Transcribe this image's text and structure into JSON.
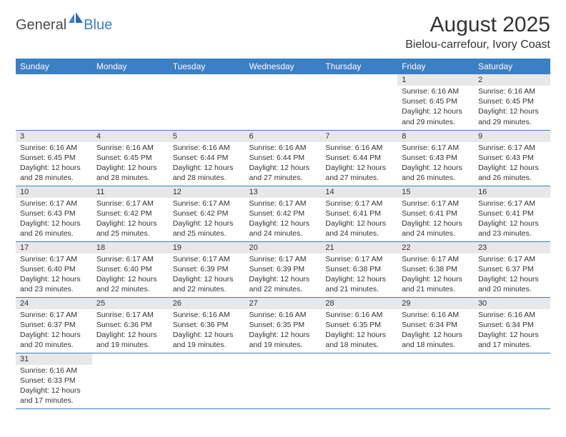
{
  "logo": {
    "text1": "General",
    "text2": "Blue"
  },
  "title": "August 2025",
  "location": "Bielou-carrefour, Ivory Coast",
  "colors": {
    "header_bg": "#3b7fc4",
    "header_text": "#ffffff",
    "daynum_bg": "#e8e8e8",
    "cell_border": "#3b7fc4",
    "page_bg": "#ffffff",
    "text": "#333333"
  },
  "typography": {
    "title_fontsize": 30,
    "location_fontsize": 16,
    "dayheader_fontsize": 12,
    "daynum_fontsize": 11,
    "cell_fontsize": 10.5,
    "logo_fontsize": 20
  },
  "day_headers": [
    "Sunday",
    "Monday",
    "Tuesday",
    "Wednesday",
    "Thursday",
    "Friday",
    "Saturday"
  ],
  "weeks": [
    [
      {
        "day": "",
        "lines": []
      },
      {
        "day": "",
        "lines": []
      },
      {
        "day": "",
        "lines": []
      },
      {
        "day": "",
        "lines": []
      },
      {
        "day": "",
        "lines": []
      },
      {
        "day": "1",
        "lines": [
          "Sunrise: 6:16 AM",
          "Sunset: 6:45 PM",
          "Daylight: 12 hours",
          "and 29 minutes."
        ]
      },
      {
        "day": "2",
        "lines": [
          "Sunrise: 6:16 AM",
          "Sunset: 6:45 PM",
          "Daylight: 12 hours",
          "and 29 minutes."
        ]
      }
    ],
    [
      {
        "day": "3",
        "lines": [
          "Sunrise: 6:16 AM",
          "Sunset: 6:45 PM",
          "Daylight: 12 hours",
          "and 28 minutes."
        ]
      },
      {
        "day": "4",
        "lines": [
          "Sunrise: 6:16 AM",
          "Sunset: 6:45 PM",
          "Daylight: 12 hours",
          "and 28 minutes."
        ]
      },
      {
        "day": "5",
        "lines": [
          "Sunrise: 6:16 AM",
          "Sunset: 6:44 PM",
          "Daylight: 12 hours",
          "and 28 minutes."
        ]
      },
      {
        "day": "6",
        "lines": [
          "Sunrise: 6:16 AM",
          "Sunset: 6:44 PM",
          "Daylight: 12 hours",
          "and 27 minutes."
        ]
      },
      {
        "day": "7",
        "lines": [
          "Sunrise: 6:16 AM",
          "Sunset: 6:44 PM",
          "Daylight: 12 hours",
          "and 27 minutes."
        ]
      },
      {
        "day": "8",
        "lines": [
          "Sunrise: 6:17 AM",
          "Sunset: 6:43 PM",
          "Daylight: 12 hours",
          "and 26 minutes."
        ]
      },
      {
        "day": "9",
        "lines": [
          "Sunrise: 6:17 AM",
          "Sunset: 6:43 PM",
          "Daylight: 12 hours",
          "and 26 minutes."
        ]
      }
    ],
    [
      {
        "day": "10",
        "lines": [
          "Sunrise: 6:17 AM",
          "Sunset: 6:43 PM",
          "Daylight: 12 hours",
          "and 26 minutes."
        ]
      },
      {
        "day": "11",
        "lines": [
          "Sunrise: 6:17 AM",
          "Sunset: 6:42 PM",
          "Daylight: 12 hours",
          "and 25 minutes."
        ]
      },
      {
        "day": "12",
        "lines": [
          "Sunrise: 6:17 AM",
          "Sunset: 6:42 PM",
          "Daylight: 12 hours",
          "and 25 minutes."
        ]
      },
      {
        "day": "13",
        "lines": [
          "Sunrise: 6:17 AM",
          "Sunset: 6:42 PM",
          "Daylight: 12 hours",
          "and 24 minutes."
        ]
      },
      {
        "day": "14",
        "lines": [
          "Sunrise: 6:17 AM",
          "Sunset: 6:41 PM",
          "Daylight: 12 hours",
          "and 24 minutes."
        ]
      },
      {
        "day": "15",
        "lines": [
          "Sunrise: 6:17 AM",
          "Sunset: 6:41 PM",
          "Daylight: 12 hours",
          "and 24 minutes."
        ]
      },
      {
        "day": "16",
        "lines": [
          "Sunrise: 6:17 AM",
          "Sunset: 6:41 PM",
          "Daylight: 12 hours",
          "and 23 minutes."
        ]
      }
    ],
    [
      {
        "day": "17",
        "lines": [
          "Sunrise: 6:17 AM",
          "Sunset: 6:40 PM",
          "Daylight: 12 hours",
          "and 23 minutes."
        ]
      },
      {
        "day": "18",
        "lines": [
          "Sunrise: 6:17 AM",
          "Sunset: 6:40 PM",
          "Daylight: 12 hours",
          "and 22 minutes."
        ]
      },
      {
        "day": "19",
        "lines": [
          "Sunrise: 6:17 AM",
          "Sunset: 6:39 PM",
          "Daylight: 12 hours",
          "and 22 minutes."
        ]
      },
      {
        "day": "20",
        "lines": [
          "Sunrise: 6:17 AM",
          "Sunset: 6:39 PM",
          "Daylight: 12 hours",
          "and 22 minutes."
        ]
      },
      {
        "day": "21",
        "lines": [
          "Sunrise: 6:17 AM",
          "Sunset: 6:38 PM",
          "Daylight: 12 hours",
          "and 21 minutes."
        ]
      },
      {
        "day": "22",
        "lines": [
          "Sunrise: 6:17 AM",
          "Sunset: 6:38 PM",
          "Daylight: 12 hours",
          "and 21 minutes."
        ]
      },
      {
        "day": "23",
        "lines": [
          "Sunrise: 6:17 AM",
          "Sunset: 6:37 PM",
          "Daylight: 12 hours",
          "and 20 minutes."
        ]
      }
    ],
    [
      {
        "day": "24",
        "lines": [
          "Sunrise: 6:17 AM",
          "Sunset: 6:37 PM",
          "Daylight: 12 hours",
          "and 20 minutes."
        ]
      },
      {
        "day": "25",
        "lines": [
          "Sunrise: 6:17 AM",
          "Sunset: 6:36 PM",
          "Daylight: 12 hours",
          "and 19 minutes."
        ]
      },
      {
        "day": "26",
        "lines": [
          "Sunrise: 6:16 AM",
          "Sunset: 6:36 PM",
          "Daylight: 12 hours",
          "and 19 minutes."
        ]
      },
      {
        "day": "27",
        "lines": [
          "Sunrise: 6:16 AM",
          "Sunset: 6:35 PM",
          "Daylight: 12 hours",
          "and 19 minutes."
        ]
      },
      {
        "day": "28",
        "lines": [
          "Sunrise: 6:16 AM",
          "Sunset: 6:35 PM",
          "Daylight: 12 hours",
          "and 18 minutes."
        ]
      },
      {
        "day": "29",
        "lines": [
          "Sunrise: 6:16 AM",
          "Sunset: 6:34 PM",
          "Daylight: 12 hours",
          "and 18 minutes."
        ]
      },
      {
        "day": "30",
        "lines": [
          "Sunrise: 6:16 AM",
          "Sunset: 6:34 PM",
          "Daylight: 12 hours",
          "and 17 minutes."
        ]
      }
    ],
    [
      {
        "day": "31",
        "lines": [
          "Sunrise: 6:16 AM",
          "Sunset: 6:33 PM",
          "Daylight: 12 hours",
          "and 17 minutes."
        ]
      },
      {
        "day": "",
        "lines": []
      },
      {
        "day": "",
        "lines": []
      },
      {
        "day": "",
        "lines": []
      },
      {
        "day": "",
        "lines": []
      },
      {
        "day": "",
        "lines": []
      },
      {
        "day": "",
        "lines": []
      }
    ]
  ]
}
